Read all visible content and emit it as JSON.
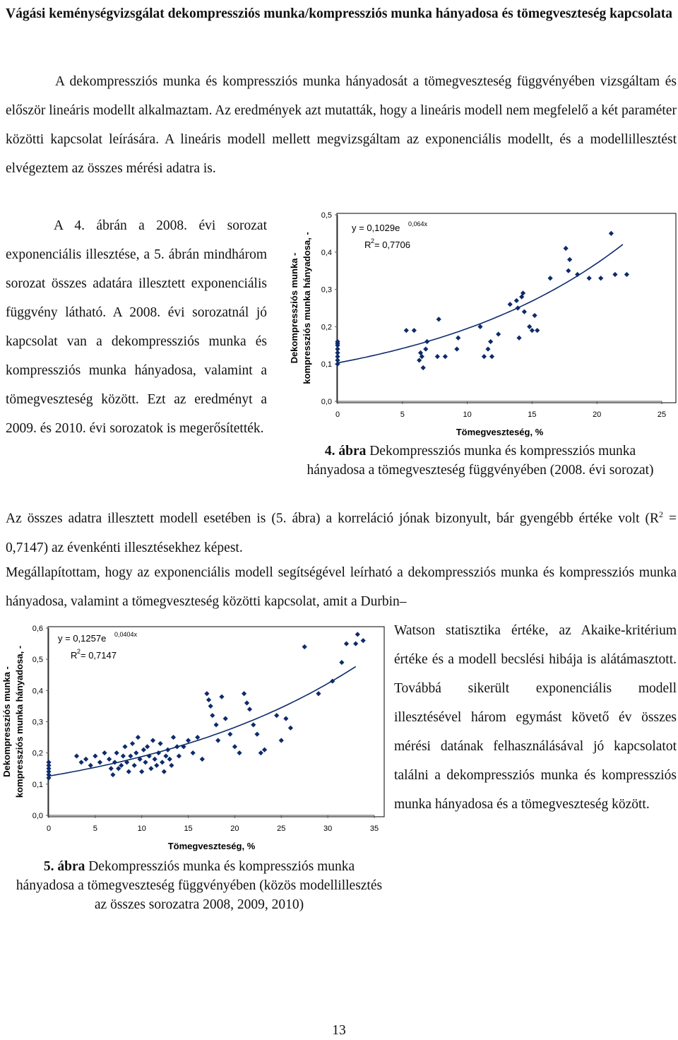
{
  "title": "Vágási keménységvizsgálat dekompressziós munka/kompressziós munka hányadosa és tömegveszteség kapcsolata",
  "paragraph1": "A dekompressziós munka és kompressziós munka hányadosát a tömegveszteség függvényében vizsgáltam és először lineáris modellt alkalmaztam. Az eredmények azt mutatták, hogy a lineáris modell nem megfelelő a két paraméter közötti kapcsolat leírására. A lineáris modell mellett megvizsgáltam az exponenciális modellt, és a modellillesztést elvégeztem az összes mérési adatra is.",
  "paragraph2": "A 4. ábrán a 2008. évi sorozat exponenciális illesztése, a 5. ábrán mindhárom sorozat összes adatára illesztett exponenciális függvény látható. A 2008. évi sorozatnál jó kapcsolat van a dekompressziós munka és kompressziós munka hányadosa, valamint a tömegveszteség között. Ezt az eredményt a 2009. és 2010. évi sorozatok is megerősítették.",
  "paragraph3": {
    "before": "Az összes adatra illesztett modell esetében is (5. ábra) a korreláció jónak bizonyult, bár gyengébb értéke volt (R",
    "sup": "2",
    "after": " = 0,7147) az évenkénti illesztésekhez képest."
  },
  "paragraph4a": "Megállapítottam, hogy az exponenciális modell segítségével leírható a dekompressziós munka és kompressziós munka hányadosa, valamint a tömegveszteség közötti kapcsolat, amit a Durbin–",
  "paragraph4b": "Watson statisztika értéke, az Akaike-kritérium értéke és a modell becslési hibája is alátámasztott. Továbbá sikerült exponenciális modell illesztésével három egymást követő év összes mérési datának felhasználásával jó kapcsolatot találni a dekompressziós munka és kompressziós munka hányadosa és a tömegveszteség között.",
  "figure4": {
    "caption_label": "4. ábra",
    "caption_text": " Dekompressziós munka és kompressziós munka hányadosa a tömegveszteség függvényében (2008. évi sorozat)"
  },
  "figure5": {
    "caption_label": "5. ábra",
    "caption_text": " Dekompressziós munka és kompressziós munka hányadosa a tömegveszteség függvényében (közös modellillesztés az összes sorozatra 2008, 2009, 2010)"
  },
  "page_number": "13",
  "chart_data": [
    {
      "type": "scatter",
      "title": "",
      "xlabel": "Tömegveszteség, %",
      "ylabel_line1": "Dekompressziós munka -",
      "ylabel_line2": "kompressziós munka hányadosa, -",
      "xlim": [
        0,
        25
      ],
      "ylim": [
        0,
        0.5
      ],
      "xticks": [
        "0",
        "5",
        "10",
        "15",
        "20",
        "25"
      ],
      "yticks": [
        "0,0",
        "0,1",
        "0,2",
        "0,3",
        "0,4",
        "0,5"
      ],
      "equation_main": "y = 0,1029e",
      "equation_exp": "0,064x",
      "r2_main": "R",
      "r2_sup": "2",
      "r2_rest": " = 0,7706",
      "fit": {
        "a": 0.1029,
        "b": 0.064,
        "x_from": 0,
        "x_to": 22
      },
      "marker_color": "#0d2b6b",
      "series": [
        {
          "points": [
            [
              0,
              0.1
            ],
            [
              0,
              0.11
            ],
            [
              0,
              0.12
            ],
            [
              0,
              0.13
            ],
            [
              0,
              0.14
            ],
            [
              0,
              0.15
            ],
            [
              0,
              0.155
            ],
            [
              0,
              0.16
            ],
            [
              5.3,
              0.19
            ],
            [
              5.9,
              0.19
            ],
            [
              6.3,
              0.11
            ],
            [
              6.4,
              0.13
            ],
            [
              6.5,
              0.12
            ],
            [
              6.6,
              0.09
            ],
            [
              6.8,
              0.14
            ],
            [
              6.9,
              0.16
            ],
            [
              7.7,
              0.12
            ],
            [
              7.8,
              0.22
            ],
            [
              8.3,
              0.12
            ],
            [
              9.2,
              0.14
            ],
            [
              9.3,
              0.17
            ],
            [
              11.0,
              0.2
            ],
            [
              11.3,
              0.12
            ],
            [
              11.6,
              0.14
            ],
            [
              11.8,
              0.16
            ],
            [
              11.9,
              0.12
            ],
            [
              12.4,
              0.18
            ],
            [
              13.3,
              0.26
            ],
            [
              13.8,
              0.27
            ],
            [
              13.9,
              0.25
            ],
            [
              14.0,
              0.17
            ],
            [
              14.2,
              0.28
            ],
            [
              14.3,
              0.29
            ],
            [
              14.4,
              0.24
            ],
            [
              14.8,
              0.2
            ],
            [
              15.0,
              0.19
            ],
            [
              15.2,
              0.23
            ],
            [
              15.4,
              0.19
            ],
            [
              16.4,
              0.33
            ],
            [
              17.6,
              0.41
            ],
            [
              17.8,
              0.35
            ],
            [
              17.9,
              0.38
            ],
            [
              18.5,
              0.34
            ],
            [
              19.4,
              0.33
            ],
            [
              20.3,
              0.33
            ],
            [
              21.1,
              0.45
            ],
            [
              21.4,
              0.34
            ],
            [
              22.3,
              0.34
            ]
          ]
        }
      ]
    },
    {
      "type": "scatter",
      "title": "",
      "xlabel": "Tömegveszteség, %",
      "ylabel_line1": "Dekompressziós munka -",
      "ylabel_line2": "kompressziós munka hányadosa, -",
      "xlim": [
        0,
        35
      ],
      "ylim": [
        0,
        0.6
      ],
      "xticks": [
        "0",
        "5",
        "10",
        "15",
        "20",
        "25",
        "30",
        "35"
      ],
      "yticks": [
        "0,0",
        "0,1",
        "0,2",
        "0,3",
        "0,4",
        "0,5",
        "0,6"
      ],
      "equation_main": "y = 0,1257e",
      "equation_exp": "0,0404x",
      "r2_main": "R",
      "r2_sup": "2",
      "r2_rest": " = 0,7147",
      "fit": {
        "a": 0.1257,
        "b": 0.0404,
        "x_from": 0,
        "x_to": 33
      },
      "marker_color": "#0d2b6b",
      "series": [
        {
          "points": [
            [
              0,
              0.12
            ],
            [
              0,
              0.13
            ],
            [
              0,
              0.14
            ],
            [
              0,
              0.15
            ],
            [
              0,
              0.16
            ],
            [
              0,
              0.17
            ],
            [
              3.0,
              0.19
            ],
            [
              3.5,
              0.17
            ],
            [
              4.0,
              0.18
            ],
            [
              4.5,
              0.16
            ],
            [
              5.0,
              0.19
            ],
            [
              5.5,
              0.17
            ],
            [
              6.0,
              0.2
            ],
            [
              6.5,
              0.18
            ],
            [
              6.7,
              0.15
            ],
            [
              6.9,
              0.13
            ],
            [
              7.1,
              0.17
            ],
            [
              7.3,
              0.2
            ],
            [
              7.5,
              0.15
            ],
            [
              7.8,
              0.16
            ],
            [
              8.0,
              0.19
            ],
            [
              8.2,
              0.22
            ],
            [
              8.4,
              0.17
            ],
            [
              8.6,
              0.14
            ],
            [
              8.8,
              0.19
            ],
            [
              9.0,
              0.23
            ],
            [
              9.2,
              0.16
            ],
            [
              9.4,
              0.2
            ],
            [
              9.6,
              0.25
            ],
            [
              9.8,
              0.18
            ],
            [
              10.0,
              0.14
            ],
            [
              10.2,
              0.21
            ],
            [
              10.4,
              0.17
            ],
            [
              10.6,
              0.22
            ],
            [
              10.8,
              0.19
            ],
            [
              11.0,
              0.15
            ],
            [
              11.2,
              0.24
            ],
            [
              11.4,
              0.18
            ],
            [
              11.6,
              0.16
            ],
            [
              11.8,
              0.2
            ],
            [
              12.0,
              0.23
            ],
            [
              12.2,
              0.17
            ],
            [
              12.4,
              0.14
            ],
            [
              12.6,
              0.19
            ],
            [
              12.8,
              0.21
            ],
            [
              13.0,
              0.18
            ],
            [
              13.2,
              0.16
            ],
            [
              13.4,
              0.25
            ],
            [
              13.8,
              0.22
            ],
            [
              14.0,
              0.19
            ],
            [
              14.5,
              0.22
            ],
            [
              15.0,
              0.24
            ],
            [
              15.5,
              0.2
            ],
            [
              16.0,
              0.25
            ],
            [
              16.5,
              0.18
            ],
            [
              17.0,
              0.39
            ],
            [
              17.2,
              0.37
            ],
            [
              17.4,
              0.35
            ],
            [
              17.6,
              0.32
            ],
            [
              18.0,
              0.29
            ],
            [
              18.2,
              0.24
            ],
            [
              18.6,
              0.38
            ],
            [
              19.0,
              0.31
            ],
            [
              19.5,
              0.26
            ],
            [
              20.0,
              0.22
            ],
            [
              20.5,
              0.2
            ],
            [
              21.0,
              0.39
            ],
            [
              21.3,
              0.36
            ],
            [
              21.6,
              0.34
            ],
            [
              22.0,
              0.29
            ],
            [
              22.4,
              0.26
            ],
            [
              22.8,
              0.2
            ],
            [
              23.2,
              0.21
            ],
            [
              24.5,
              0.32
            ],
            [
              25.0,
              0.24
            ],
            [
              25.5,
              0.31
            ],
            [
              26.0,
              0.28
            ],
            [
              27.5,
              0.54
            ],
            [
              29.0,
              0.39
            ],
            [
              30.5,
              0.43
            ],
            [
              31.5,
              0.49
            ],
            [
              32.0,
              0.55
            ],
            [
              33.0,
              0.55
            ],
            [
              33.2,
              0.58
            ],
            [
              33.8,
              0.56
            ]
          ]
        }
      ]
    }
  ]
}
